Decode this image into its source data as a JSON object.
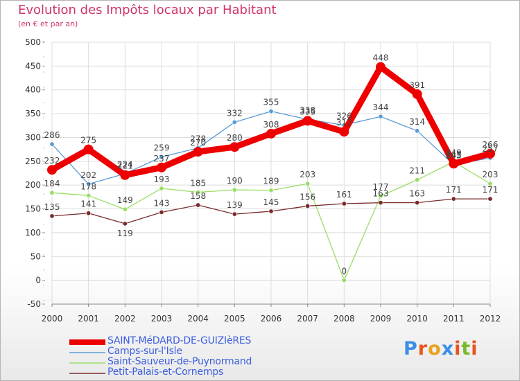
{
  "header": {
    "title": "Evolution des Impôts locaux par Habitant",
    "subtitle": "(en € et par an)"
  },
  "logo": {
    "text": "Proxiti",
    "colors": [
      "#3a8ee6",
      "#e8541e",
      "#e8a21e",
      "#3a8ee6",
      "#e8541e",
      "#7cb92c",
      "#e8541e"
    ]
  },
  "chart_data": {
    "type": "line",
    "x": [
      "2000",
      "2001",
      "2002",
      "2003",
      "2004",
      "2005",
      "2006",
      "2007",
      "2008",
      "2009",
      "2010",
      "2011",
      "2012"
    ],
    "ylim": [
      -50,
      500
    ],
    "yticks": [
      -50,
      0,
      50,
      100,
      150,
      200,
      250,
      300,
      350,
      400,
      450,
      500
    ],
    "grid": true,
    "legend_position": "bottom-left",
    "series": [
      {
        "name": "SAINT-MéDARD-DE-GUIZIèRES",
        "color": "#ee0000",
        "values": [
          232,
          275,
          221,
          237,
          270,
          280,
          308,
          335,
          312,
          448,
          391,
          245,
          266
        ],
        "labels": [
          "232",
          "275",
          "221",
          "237",
          "270",
          "280",
          "308",
          "335",
          "312",
          "448",
          "391",
          "245",
          "266"
        ]
      },
      {
        "name": "Camps-sur-l'Isle",
        "color": "#5b9bd5",
        "values": [
          286,
          202,
          224,
          259,
          278,
          332,
          355,
          338,
          326,
          344,
          314,
          243,
          257
        ],
        "labels": [
          "286",
          "202",
          "224",
          "259",
          "278",
          "332",
          "355",
          "338",
          "326",
          "344",
          "314",
          "243",
          "257"
        ]
      },
      {
        "name": "Saint-Sauveur-de-Puynormand",
        "color": "#99dd66",
        "values": [
          184,
          178,
          149,
          193,
          185,
          190,
          189,
          203,
          0,
          177,
          211,
          249,
          203
        ],
        "labels": [
          "184",
          "178",
          "149",
          "193",
          "185",
          "190",
          "189",
          "203",
          "0",
          "177",
          "211",
          "249",
          "203"
        ]
      },
      {
        "name": "Petit-Palais-et-Cornemps",
        "color": "#7a2b2b",
        "values": [
          135,
          141,
          119,
          143,
          158,
          139,
          145,
          156,
          161,
          163,
          163,
          171,
          171
        ],
        "labels": [
          "135",
          "141",
          "119",
          "143",
          "158",
          "139",
          "145",
          "156",
          "161",
          "163",
          "163",
          "171",
          "171"
        ]
      }
    ]
  }
}
